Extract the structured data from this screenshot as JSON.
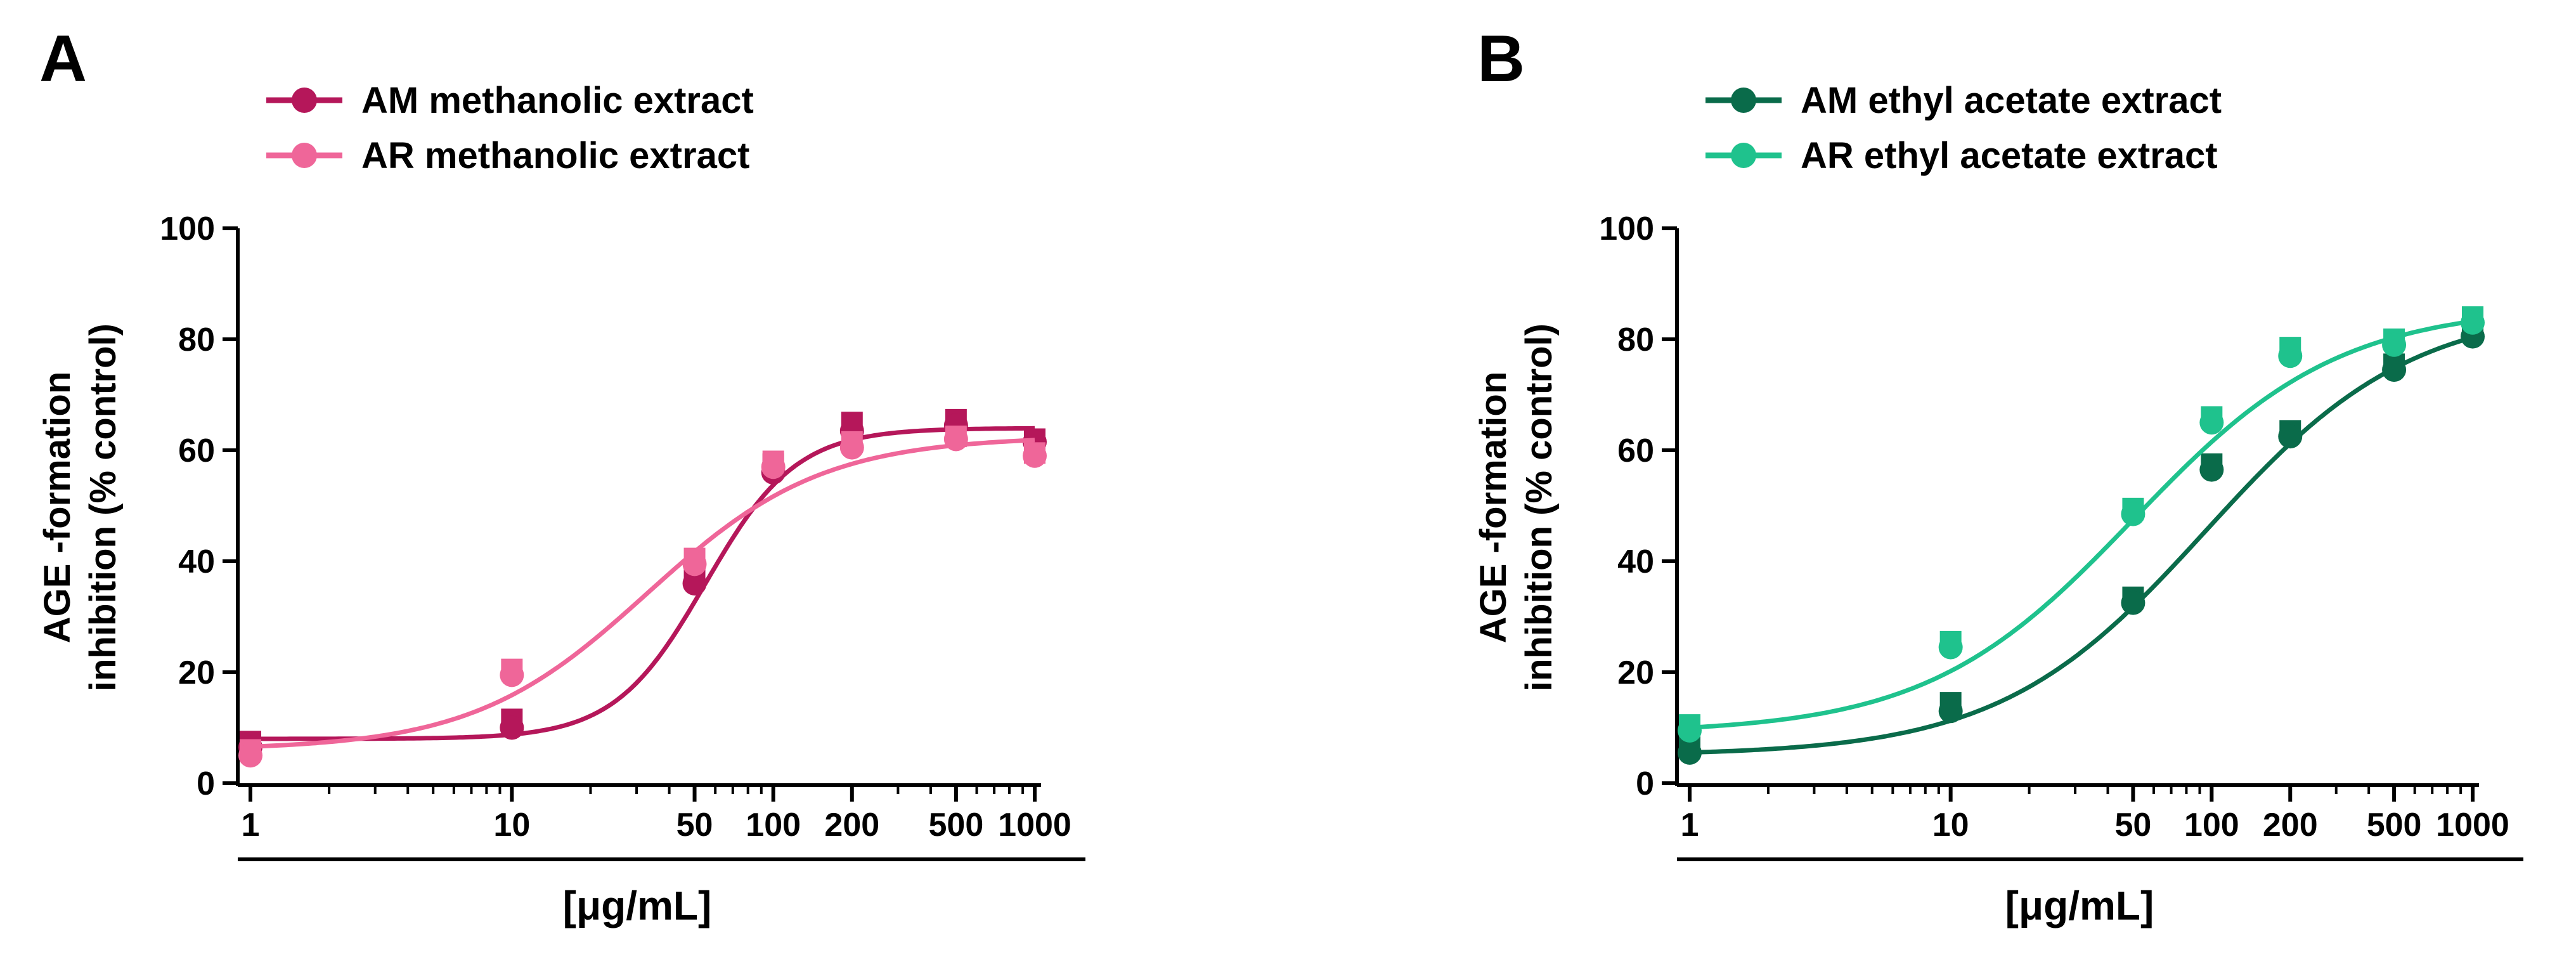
{
  "chart_data": [
    {
      "type": "scatter",
      "panel_label": "A",
      "xlabel": "[μg/mL]",
      "ylabel": [
        "AGE -formation",
        "inhibition (% control)"
      ],
      "xscale": "log",
      "xlim": [
        1,
        1000
      ],
      "ylim": [
        0,
        100
      ],
      "x_ticks": [
        1,
        10,
        50,
        100,
        200,
        500,
        1000
      ],
      "y_ticks": [
        0,
        20,
        40,
        60,
        80,
        100
      ],
      "grid": false,
      "legend_position": "top-left",
      "series": [
        {
          "name": "AM methanolic extract",
          "color": "#b5175a",
          "x": [
            1,
            1,
            10,
            10,
            50,
            50,
            100,
            100,
            200,
            200,
            500,
            500,
            1000,
            1000
          ],
          "y": [
            7.5,
            6.5,
            11.5,
            10.0,
            38.0,
            36.0,
            57.5,
            56.0,
            65.0,
            63.5,
            65.5,
            64.5,
            62.0,
            61.5
          ],
          "fit": {
            "bottom": 8.0,
            "top": 64.0,
            "ec50": 55.0,
            "hill": 2.5
          }
        },
        {
          "name": "AR methanolic extract",
          "color": "#ef6699",
          "x": [
            1,
            1,
            10,
            10,
            50,
            50,
            100,
            100,
            200,
            200,
            500,
            500,
            1000,
            1000
          ],
          "y": [
            6.0,
            5.0,
            20.5,
            19.5,
            40.5,
            39.5,
            58.0,
            57.0,
            61.5,
            60.5,
            62.5,
            62.0,
            59.5,
            59.0
          ],
          "fit": {
            "bottom": 6.0,
            "top": 62.5,
            "ec50": 33.0,
            "hill": 1.3
          }
        }
      ]
    },
    {
      "type": "scatter",
      "panel_label": "B",
      "xlabel": "[μg/mL]",
      "ylabel": [
        "AGE -formation",
        "inhibition (% control)"
      ],
      "xscale": "log",
      "xlim": [
        1,
        1000
      ],
      "ylim": [
        0,
        100
      ],
      "x_ticks": [
        1,
        10,
        50,
        100,
        200,
        500,
        1000
      ],
      "y_ticks": [
        0,
        20,
        40,
        60,
        80,
        100
      ],
      "grid": false,
      "legend_position": "top-left",
      "series": [
        {
          "name": "AM ethyl acetate extract",
          "color": "#0a6b4a",
          "x": [
            1,
            1,
            10,
            10,
            50,
            50,
            100,
            100,
            200,
            200,
            500,
            500,
            1000,
            1000
          ],
          "y": [
            6.5,
            5.5,
            14.5,
            13.0,
            33.5,
            32.5,
            57.5,
            56.5,
            63.5,
            62.5,
            75.5,
            74.5,
            81.5,
            80.5
          ],
          "fit": {
            "bottom": 5.0,
            "top": 86.0,
            "ec50": 95.0,
            "hill": 1.1
          }
        },
        {
          "name": "AR ethyl acetate extract",
          "color": "#1fc28d",
          "x": [
            1,
            1,
            10,
            10,
            50,
            50,
            100,
            100,
            200,
            200,
            500,
            500,
            1000,
            1000
          ],
          "y": [
            10.5,
            9.5,
            25.5,
            24.5,
            49.5,
            48.5,
            66.0,
            65.0,
            78.5,
            77.0,
            80.0,
            79.0,
            84.0,
            83.0
          ],
          "fit": {
            "bottom": 9.0,
            "top": 86.0,
            "ec50": 50.0,
            "hill": 1.1
          }
        }
      ]
    }
  ]
}
